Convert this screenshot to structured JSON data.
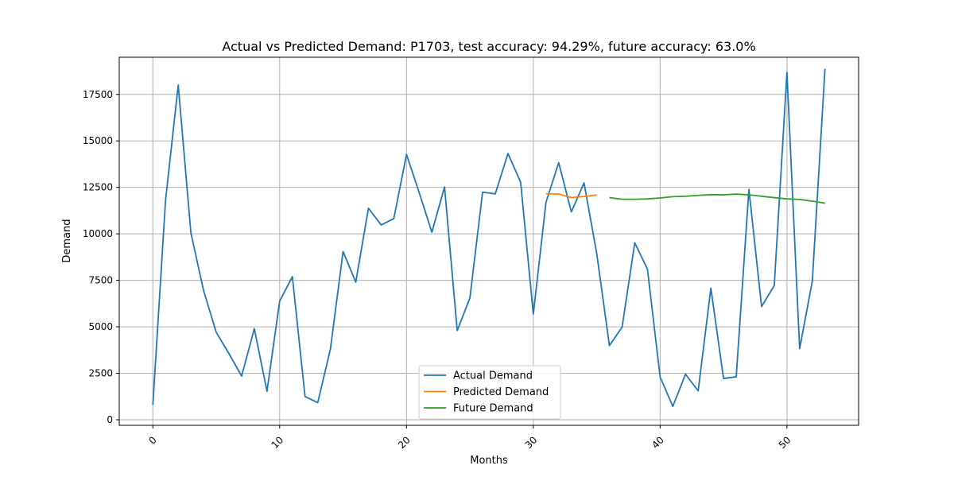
{
  "chart_data": {
    "type": "line",
    "title": "Actual vs Predicted Demand: P1703, test accuracy: 94.29%, future accuracy: 63.0%",
    "xlabel": "Months",
    "ylabel": "Demand",
    "xlim": [
      -2.65,
      55.65
    ],
    "ylim": [
      -300,
      19500
    ],
    "xticks": [
      0,
      10,
      20,
      30,
      40,
      50
    ],
    "xtick_labels": [
      "0",
      "10",
      "20",
      "30",
      "40",
      "50"
    ],
    "yticks": [
      0,
      2500,
      5000,
      7500,
      10000,
      12500,
      15000,
      17500
    ],
    "ytick_labels": [
      "0",
      "2500",
      "5000",
      "7500",
      "10000",
      "12500",
      "15000",
      "17500"
    ],
    "grid": true,
    "legend_position": "bottom-center",
    "series": [
      {
        "name": "Actual Demand",
        "color": "#1f77b4",
        "x": [
          0,
          1,
          2,
          3,
          4,
          5,
          6,
          7,
          8,
          9,
          10,
          11,
          12,
          13,
          14,
          15,
          16,
          17,
          18,
          19,
          20,
          21,
          22,
          23,
          24,
          25,
          26,
          27,
          28,
          29,
          30,
          31,
          32,
          33,
          34,
          35,
          36,
          37,
          38,
          39,
          40,
          41,
          42,
          43,
          44,
          45,
          46,
          47,
          48,
          49,
          50,
          51,
          52,
          53
        ],
        "values": [
          800,
          11800,
          18000,
          10050,
          6950,
          4700,
          3560,
          2350,
          4900,
          1530,
          6380,
          7700,
          1250,
          920,
          3800,
          9050,
          7400,
          11380,
          10480,
          10820,
          14270,
          12220,
          10090,
          12520,
          4800,
          6550,
          12240,
          12150,
          14320,
          12780,
          5680,
          11700,
          13830,
          11180,
          12740,
          8950,
          3990,
          4980,
          9520,
          8100,
          2300,
          720,
          2450,
          1550,
          7080,
          2220,
          2310,
          12390,
          6090,
          7220,
          18680,
          3820,
          7460,
          18880
        ]
      },
      {
        "name": "Predicted Demand",
        "color": "#ff7f0e",
        "x": [
          31,
          32,
          33,
          34,
          35
        ],
        "values": [
          12160,
          12140,
          11950,
          12010,
          12090
        ]
      },
      {
        "name": "Future Demand",
        "color": "#2ca02c",
        "x": [
          36,
          37,
          38,
          39,
          40,
          41,
          42,
          43,
          44,
          45,
          46,
          47,
          48,
          49,
          50,
          51,
          52,
          53
        ],
        "values": [
          11950,
          11860,
          11860,
          11880,
          11930,
          12000,
          12020,
          12070,
          12110,
          12100,
          12140,
          12100,
          12020,
          11950,
          11880,
          11850,
          11760,
          11650
        ]
      }
    ]
  }
}
